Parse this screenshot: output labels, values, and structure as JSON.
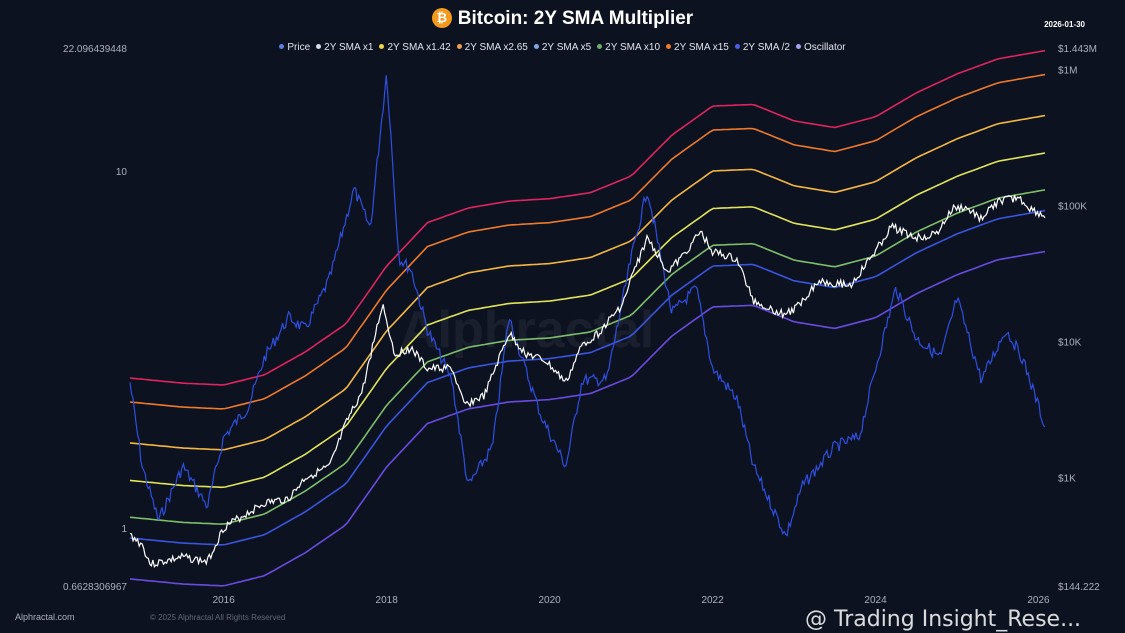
{
  "header": {
    "title": "Bitcoin: 2Y SMA Multiplier",
    "date": "2026-01-30",
    "icon": "bitcoin-icon"
  },
  "footer": {
    "site": "Alphractal.com",
    "watermark": "Alphractal",
    "copyright": "© 2025 Alphractal All Rights Reserved",
    "overlay": "@ Trading Insight_Rese..."
  },
  "chart_data": {
    "type": "line",
    "title": "Bitcoin: 2Y SMA Multiplier",
    "legend_position": "top",
    "legend": [
      {
        "name": "Price",
        "color": "#5b7fe0"
      },
      {
        "name": "2Y SMA x1",
        "color": "#d8dce6"
      },
      {
        "name": "2Y SMA x1.42",
        "color": "#e8d84a"
      },
      {
        "name": "2Y SMA x2.65",
        "color": "#f0a04a"
      },
      {
        "name": "2Y SMA x5",
        "color": "#7fa8e0"
      },
      {
        "name": "2Y SMA x10",
        "color": "#6fae6a"
      },
      {
        "name": "2Y SMA x15",
        "color": "#f07a2a"
      },
      {
        "name": "2Y SMA /2",
        "color": "#4a5fe8"
      },
      {
        "name": "Oscillator",
        "color": "#a8a0f0"
      }
    ],
    "x_ticks": [
      "2016",
      "2018",
      "2020",
      "2022",
      "2024",
      "2026"
    ],
    "xlim": [
      2014.85,
      2026.08
    ],
    "y_left": {
      "scale": "log",
      "range": [
        0.6628306967,
        22.096439448
      ],
      "ticks": [
        "0.6628306967",
        "1",
        "10",
        "22.096439448"
      ]
    },
    "y_right": {
      "scale": "log",
      "range": [
        144.222,
        1443000
      ],
      "ticks": [
        "$144.222",
        "$1K",
        "$10K",
        "$100K",
        "$1M",
        "$1.443M"
      ]
    },
    "multipliers": [
      {
        "factor": 15,
        "color": "#e0245e"
      },
      {
        "factor": 10,
        "color": "#f07a2a"
      },
      {
        "factor": 5,
        "color": "#f5b742"
      },
      {
        "factor": 2.65,
        "color": "#e2e45a"
      },
      {
        "factor": 1.42,
        "color": "#7fbf6a"
      },
      {
        "factor": 1,
        "color": "#3a55e0"
      },
      {
        "factor": 0.5,
        "color": "#6a4be0"
      }
    ],
    "sma_2y": [
      [
        2014.85,
        360
      ],
      [
        2015.5,
        330
      ],
      [
        2016.0,
        320
      ],
      [
        2016.5,
        380
      ],
      [
        2017.0,
        560
      ],
      [
        2017.5,
        900
      ],
      [
        2018.0,
        2400
      ],
      [
        2018.5,
        5000
      ],
      [
        2019.0,
        6400
      ],
      [
        2019.5,
        7200
      ],
      [
        2020.0,
        7500
      ],
      [
        2020.5,
        8300
      ],
      [
        2021.0,
        11000
      ],
      [
        2021.5,
        22000
      ],
      [
        2022.0,
        36000
      ],
      [
        2022.5,
        37000
      ],
      [
        2023.0,
        28000
      ],
      [
        2023.5,
        25000
      ],
      [
        2024.0,
        30000
      ],
      [
        2024.5,
        45000
      ],
      [
        2025.0,
        62000
      ],
      [
        2025.5,
        80000
      ],
      [
        2026.08,
        92000
      ]
    ],
    "price": [
      [
        2014.85,
        380
      ],
      [
        2015.0,
        320
      ],
      [
        2015.1,
        230
      ],
      [
        2015.5,
        260
      ],
      [
        2015.8,
        240
      ],
      [
        2016.0,
        430
      ],
      [
        2016.5,
        650
      ],
      [
        2016.8,
        700
      ],
      [
        2017.0,
        1000
      ],
      [
        2017.3,
        1200
      ],
      [
        2017.5,
        2500
      ],
      [
        2017.7,
        4300
      ],
      [
        2017.95,
        19000
      ],
      [
        2018.1,
        8000
      ],
      [
        2018.3,
        9000
      ],
      [
        2018.5,
        6300
      ],
      [
        2018.8,
        6400
      ],
      [
        2018.95,
        3400
      ],
      [
        2019.2,
        4000
      ],
      [
        2019.5,
        11500
      ],
      [
        2019.7,
        8200
      ],
      [
        2019.95,
        7200
      ],
      [
        2020.2,
        5000
      ],
      [
        2020.4,
        9500
      ],
      [
        2020.6,
        11500
      ],
      [
        2020.9,
        19000
      ],
      [
        2021.0,
        29000
      ],
      [
        2021.2,
        58000
      ],
      [
        2021.45,
        33000
      ],
      [
        2021.6,
        40000
      ],
      [
        2021.85,
        64000
      ],
      [
        2022.0,
        46000
      ],
      [
        2022.3,
        40000
      ],
      [
        2022.5,
        20000
      ],
      [
        2022.85,
        16000
      ],
      [
        2023.0,
        17000
      ],
      [
        2023.3,
        28000
      ],
      [
        2023.7,
        26000
      ],
      [
        2023.95,
        42000
      ],
      [
        2024.2,
        70000
      ],
      [
        2024.5,
        58000
      ],
      [
        2024.75,
        62000
      ],
      [
        2024.95,
        95000
      ],
      [
        2025.1,
        97000
      ],
      [
        2025.3,
        80000
      ],
      [
        2025.5,
        107000
      ],
      [
        2025.75,
        115000
      ],
      [
        2025.9,
        95000
      ],
      [
        2026.0,
        88000
      ],
      [
        2026.08,
        83000
      ]
    ],
    "oscillator": [
      [
        2014.85,
        2.56
      ],
      [
        2015.0,
        1.49
      ],
      [
        2015.2,
        1.05
      ],
      [
        2015.5,
        1.49
      ],
      [
        2015.8,
        1.15
      ],
      [
        2016.0,
        1.8
      ],
      [
        2016.3,
        2.18
      ],
      [
        2016.5,
        3.0
      ],
      [
        2016.8,
        3.9
      ],
      [
        2017.0,
        3.6
      ],
      [
        2017.3,
        5.0
      ],
      [
        2017.6,
        8.9
      ],
      [
        2017.8,
        6.9
      ],
      [
        2018.0,
        19
      ],
      [
        2018.15,
        5.7
      ],
      [
        2018.3,
        5.3
      ],
      [
        2018.5,
        3.6
      ],
      [
        2018.8,
        2.6
      ],
      [
        2019.0,
        1.31
      ],
      [
        2019.3,
        1.69
      ],
      [
        2019.5,
        3.9
      ],
      [
        2019.7,
        2.8
      ],
      [
        2019.9,
        2.05
      ],
      [
        2020.2,
        1.49
      ],
      [
        2020.4,
        2.6
      ],
      [
        2020.7,
        2.6
      ],
      [
        2021.0,
        5.7
      ],
      [
        2021.2,
        8.9
      ],
      [
        2021.5,
        4.0
      ],
      [
        2021.8,
        4.7
      ],
      [
        2022.0,
        2.8
      ],
      [
        2022.3,
        2.3
      ],
      [
        2022.5,
        1.49
      ],
      [
        2022.9,
        0.95
      ],
      [
        2023.1,
        1.31
      ],
      [
        2023.5,
        1.69
      ],
      [
        2023.8,
        1.8
      ],
      [
        2024.0,
        2.8
      ],
      [
        2024.25,
        4.7
      ],
      [
        2024.5,
        3.4
      ],
      [
        2024.8,
        3.0
      ],
      [
        2025.0,
        4.4
      ],
      [
        2025.3,
        2.6
      ],
      [
        2025.6,
        3.6
      ],
      [
        2025.8,
        3.0
      ],
      [
        2026.0,
        2.2
      ],
      [
        2026.08,
        1.92
      ]
    ],
    "price_color": "#ffffff",
    "oscillator_color": "#2f4fe0"
  }
}
